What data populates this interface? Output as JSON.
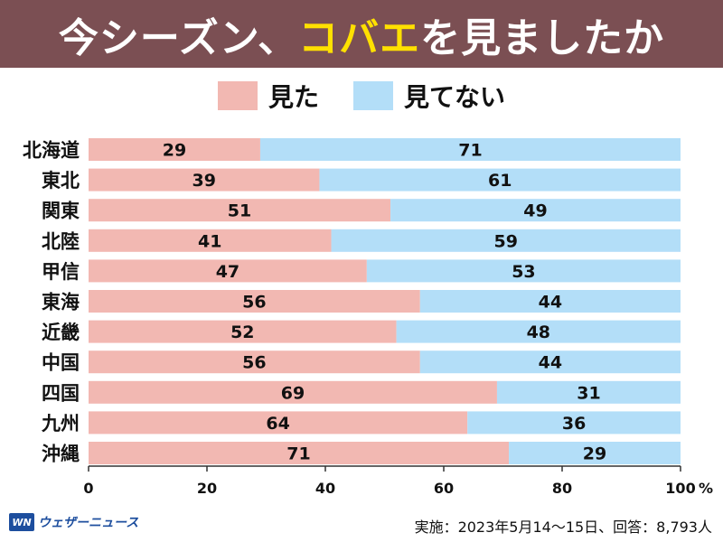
{
  "title": {
    "before": "今シーズン、",
    "highlight": "コバエ",
    "after": "を見ましたか"
  },
  "legend": [
    {
      "label": "見た",
      "color": "#f2b8b2"
    },
    {
      "label": "見てない",
      "color": "#b3def8"
    }
  ],
  "chart_data": {
    "type": "bar",
    "orientation": "horizontal",
    "stacked": true,
    "categories": [
      "北海道",
      "東北",
      "関東",
      "北陸",
      "甲信",
      "東海",
      "近畿",
      "中国",
      "四国",
      "九州",
      "沖縄"
    ],
    "series": [
      {
        "name": "見た",
        "color": "#f2b8b2",
        "values": [
          29,
          39,
          51,
          41,
          47,
          56,
          52,
          56,
          69,
          64,
          71
        ]
      },
      {
        "name": "見てない",
        "color": "#b3def8",
        "values": [
          71,
          61,
          49,
          59,
          53,
          44,
          48,
          44,
          31,
          36,
          29
        ]
      }
    ],
    "xlim": [
      0,
      100
    ],
    "xticks": [
      0,
      20,
      40,
      60,
      80,
      100
    ],
    "xunit": "%",
    "legend_position": "top-center",
    "grid": false
  },
  "footer": {
    "logo_mark": "WN",
    "logo_text": "ウェザーニュース",
    "note": "実施：2023年5月14〜15日、回答：8,793人"
  }
}
